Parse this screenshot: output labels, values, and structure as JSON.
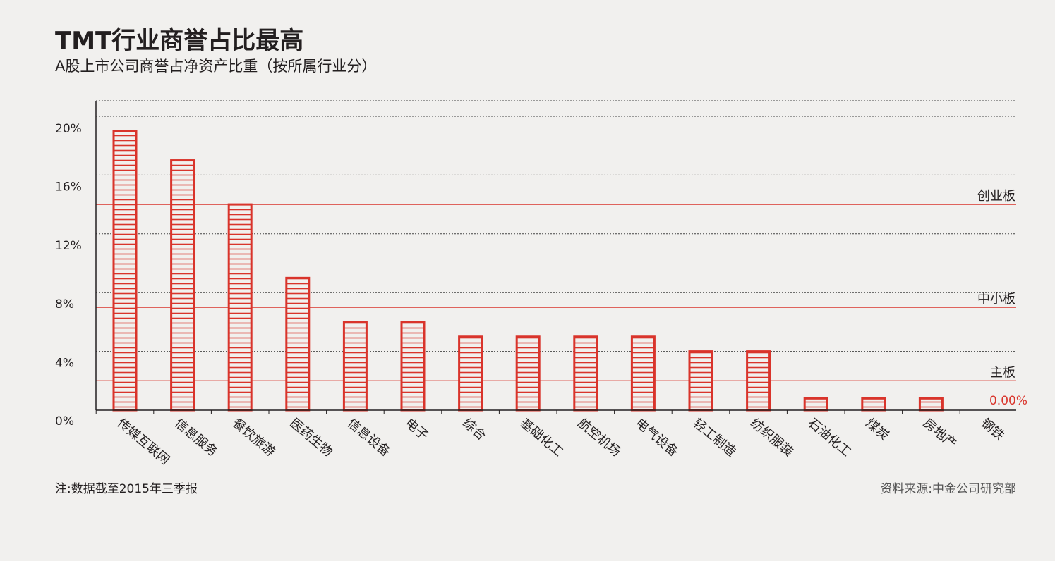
{
  "header": {
    "title": "TMT行业商誉占比最高",
    "subtitle": "A股上市公司商誉占净资产比重（按所属行业分）"
  },
  "footer": {
    "note": "注:数据截至2015年三季报",
    "source": "资料来源:中金公司研究部"
  },
  "colors": {
    "bar": "#d9342b",
    "reference_line": "#d9342b",
    "grid": "#444444",
    "text": "#231f20"
  },
  "chart_data": {
    "type": "bar",
    "title": "TMT行业商誉占比最高",
    "subtitle": "A股上市公司商誉占净资产比重（按所属行业分）",
    "categories": [
      "传媒互联网",
      "信息服务",
      "餐饮旅游",
      "医药生物",
      "信息设备",
      "电子",
      "综合",
      "基础化工",
      "航空机场",
      "电气设备",
      "轻工制造",
      "纺织服装",
      "石油化工",
      "煤炭",
      "房地产",
      "钢铁"
    ],
    "values": [
      19.0,
      17.0,
      14.0,
      9.0,
      6.0,
      6.0,
      5.0,
      5.0,
      5.0,
      5.0,
      4.0,
      4.0,
      0.8,
      0.8,
      0.8,
      0.0
    ],
    "value_labels": [
      "",
      "",
      "",
      "",
      "",
      "",
      "",
      "",
      "",
      "",
      "",
      "",
      "",
      "",
      "",
      "0.00%"
    ],
    "ylim": [
      0,
      20
    ],
    "yticks": [
      0,
      4,
      8,
      12,
      16,
      20
    ],
    "ytick_labels": [
      "0%",
      "4%",
      "8%",
      "12%",
      "16%",
      "20%"
    ],
    "grid": "dotted horizontal",
    "reference_lines": [
      {
        "label": "创业板",
        "value": 14.0
      },
      {
        "label": "中小板",
        "value": 7.0
      },
      {
        "label": "主板",
        "value": 2.0
      }
    ],
    "xlabel": "",
    "ylabel": ""
  }
}
